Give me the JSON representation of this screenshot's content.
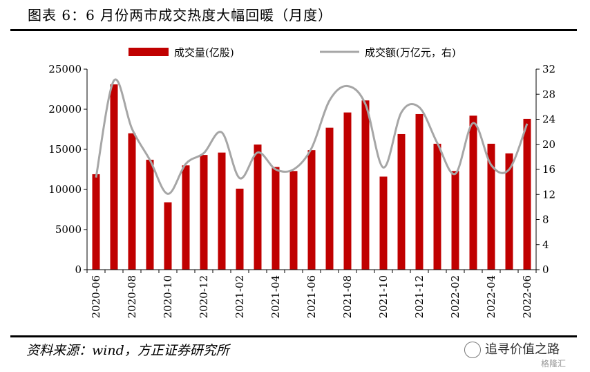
{
  "title": "图表 6：6 月份两市成交热度大幅回暖（月度）",
  "source": "资料来源：wind，方正证券研究所",
  "watermark": "追寻价值之路",
  "watermark_sub": "格隆汇",
  "colors": {
    "bar": "#c00000",
    "line": "#a6a6a6"
  },
  "chart_data": {
    "type": "bar",
    "categories": [
      "2020-06",
      "2020-07",
      "2020-08",
      "2020-09",
      "2020-10",
      "2020-11",
      "2020-12",
      "2021-01",
      "2021-02",
      "2021-03",
      "2021-04",
      "2021-05",
      "2021-06",
      "2021-07",
      "2021-08",
      "2021-09",
      "2021-10",
      "2021-11",
      "2021-12",
      "2022-01",
      "2022-02",
      "2022-03",
      "2022-04",
      "2022-05",
      "2022-06"
    ],
    "x_tick_labels": [
      "2020-06",
      "2020-08",
      "2020-10",
      "2020-12",
      "2021-02",
      "2021-04",
      "2021-06",
      "2021-08",
      "2021-10",
      "2021-12",
      "2022-02",
      "2022-04",
      "2022-06"
    ],
    "series": [
      {
        "name": "成交量(亿股)",
        "type": "bar",
        "axis": "left",
        "values": [
          11900,
          23100,
          17000,
          13700,
          8400,
          13000,
          14300,
          14600,
          10100,
          15600,
          12800,
          12300,
          14900,
          17700,
          19600,
          21100,
          11600,
          16900,
          19400,
          15700,
          12300,
          19200,
          15700,
          14500,
          18800
        ]
      },
      {
        "name": "成交额(万亿元，右)",
        "type": "line",
        "axis": "right",
        "values": [
          14.7,
          30.2,
          22.5,
          17.5,
          12.1,
          16.9,
          18.6,
          21.9,
          14.6,
          18.7,
          16.0,
          16.0,
          19.4,
          27.0,
          29.3,
          26.4,
          16.3,
          25.1,
          25.9,
          20.2,
          15.3,
          23.4,
          16.7,
          16.0,
          23.3
        ]
      }
    ],
    "y_left": {
      "lim": [
        0,
        25000
      ],
      "ticks": [
        0,
        5000,
        10000,
        15000,
        20000,
        25000
      ]
    },
    "y_right": {
      "lim": [
        0,
        32
      ],
      "ticks": [
        0,
        4,
        8,
        12,
        16,
        20,
        24,
        28,
        32
      ]
    },
    "legend_position": "top",
    "grid": false
  }
}
